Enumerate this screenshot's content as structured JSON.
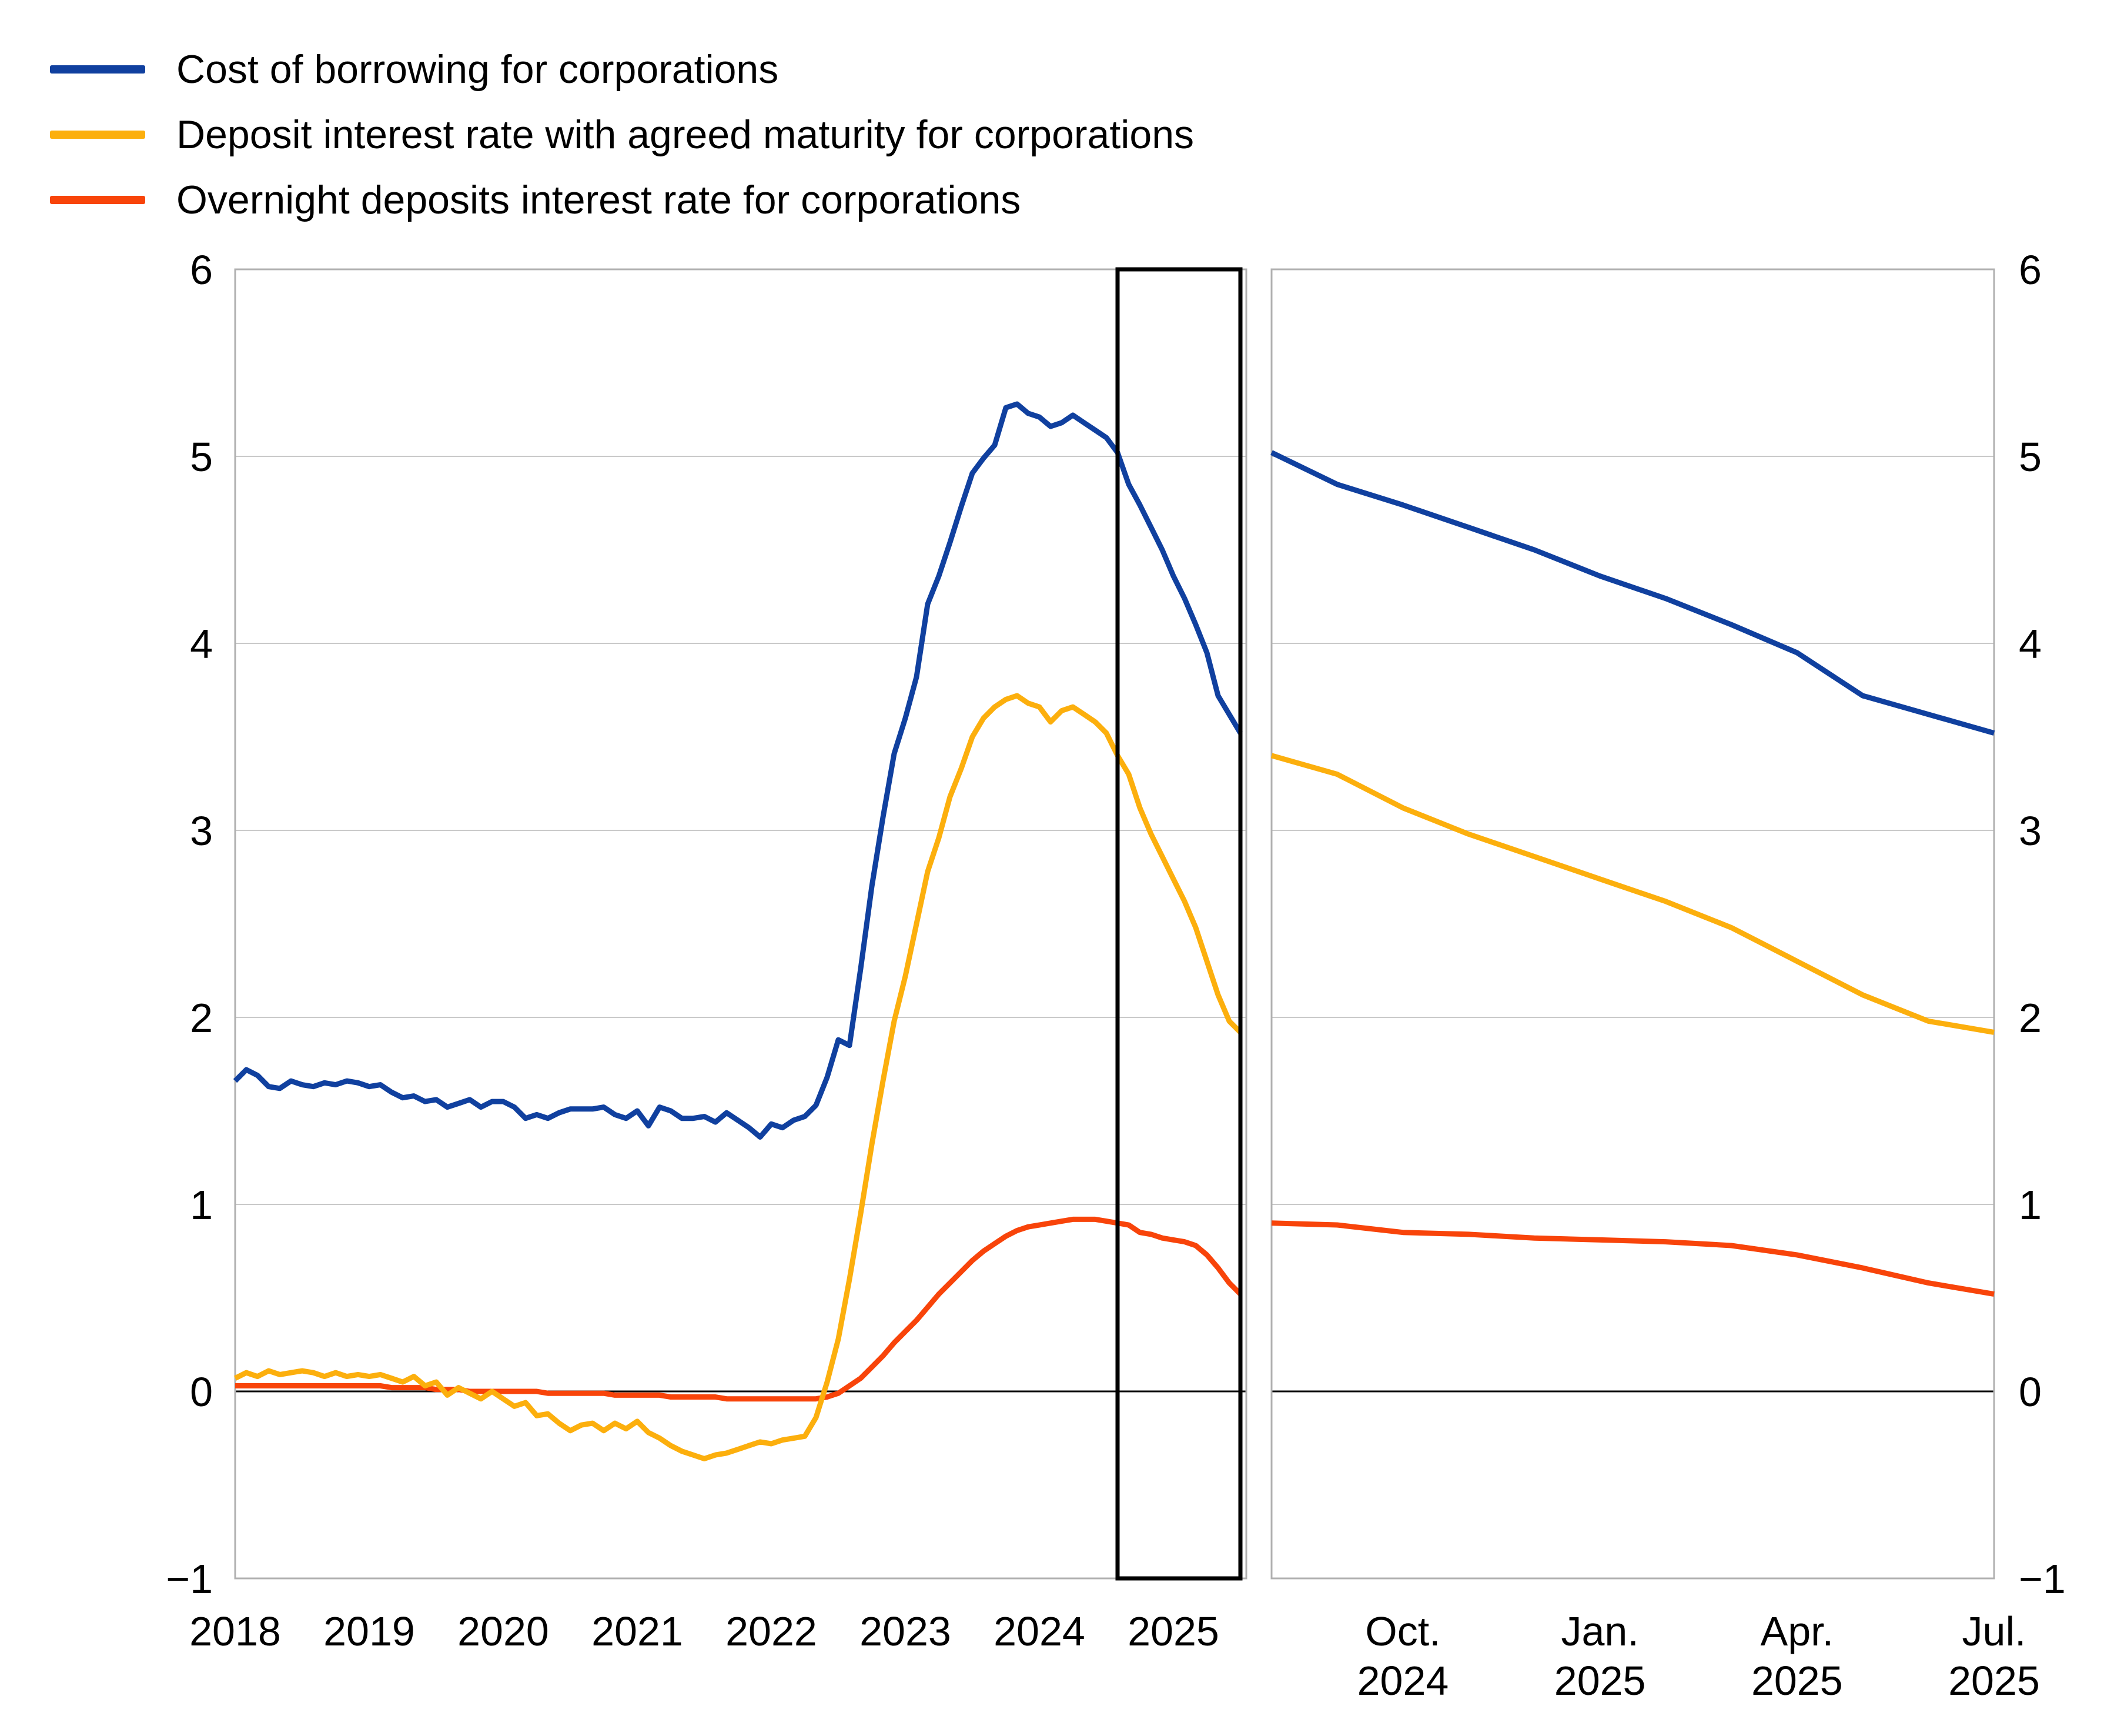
{
  "legend": {
    "items": [
      {
        "label": "Cost of borrowing for corporations",
        "color": "#10409f",
        "swatch_icon": "line-swatch-icon"
      },
      {
        "label": "Deposit interest rate with agreed maturity for corporations",
        "color": "#fcaf0d",
        "swatch_icon": "line-swatch-icon"
      },
      {
        "label": "Overnight deposits interest rate for corporations",
        "color": "#f8440a",
        "swatch_icon": "line-swatch-icon"
      }
    ]
  },
  "axis_colors": {
    "grid": "#c9c9c9",
    "border": "#b0b0b0",
    "zero_line": "#000000",
    "text": "#000000",
    "highlight_box": "#000000"
  },
  "chart_data": [
    {
      "type": "line",
      "panel": "left",
      "title": "",
      "xlabel": "",
      "ylabel": "",
      "frequency": "monthly",
      "x_start": "2018-01",
      "x_end": "2025-07",
      "ylim": [
        -1,
        6
      ],
      "y_ticks": [
        6,
        5,
        4,
        3,
        2,
        1,
        0,
        -1
      ],
      "y_tick_labels": [
        "6",
        "5",
        "4",
        "3",
        "2",
        "1",
        "0",
        "−1"
      ],
      "y_label_side": "left",
      "grid": "horizontal",
      "legend_position": "top-left",
      "x_ticks": [
        {
          "label": "2018",
          "index": 0
        },
        {
          "label": "2019",
          "index": 12
        },
        {
          "label": "2020",
          "index": 24
        },
        {
          "label": "2021",
          "index": 36
        },
        {
          "label": "2022",
          "index": 48
        },
        {
          "label": "2023",
          "index": 60
        },
        {
          "label": "2024",
          "index": 72
        },
        {
          "label": "2025",
          "index": 84
        }
      ],
      "highlight_box": {
        "from": "2024-08",
        "to": "2025-07",
        "from_index": 79,
        "to_index": 90
      },
      "series": [
        {
          "name": "Cost of borrowing for corporations",
          "color": "#10409f",
          "values": [
            1.66,
            1.72,
            1.69,
            1.63,
            1.62,
            1.66,
            1.64,
            1.63,
            1.65,
            1.64,
            1.66,
            1.65,
            1.63,
            1.64,
            1.6,
            1.57,
            1.58,
            1.55,
            1.56,
            1.52,
            1.54,
            1.56,
            1.52,
            1.55,
            1.55,
            1.52,
            1.46,
            1.48,
            1.46,
            1.49,
            1.51,
            1.51,
            1.51,
            1.52,
            1.48,
            1.46,
            1.5,
            1.42,
            1.52,
            1.5,
            1.46,
            1.46,
            1.47,
            1.44,
            1.49,
            1.45,
            1.41,
            1.36,
            1.43,
            1.41,
            1.45,
            1.47,
            1.53,
            1.68,
            1.88,
            1.85,
            2.26,
            2.7,
            3.07,
            3.41,
            3.6,
            3.82,
            4.21,
            4.36,
            4.54,
            4.73,
            4.91,
            4.99,
            5.06,
            5.26,
            5.28,
            5.23,
            5.21,
            5.16,
            5.18,
            5.22,
            5.18,
            5.14,
            5.1,
            5.02,
            4.85,
            4.74,
            4.62,
            4.5,
            4.36,
            4.24,
            4.1,
            3.95,
            3.72,
            3.62,
            3.52
          ]
        },
        {
          "name": "Deposit interest rate with agreed maturity for corporations",
          "color": "#fcaf0d",
          "values": [
            0.07,
            0.1,
            0.08,
            0.11,
            0.09,
            0.1,
            0.11,
            0.1,
            0.08,
            0.1,
            0.08,
            0.09,
            0.08,
            0.09,
            0.07,
            0.05,
            0.08,
            0.03,
            0.05,
            -0.02,
            0.02,
            -0.01,
            -0.04,
            0.0,
            -0.04,
            -0.08,
            -0.06,
            -0.13,
            -0.12,
            -0.17,
            -0.21,
            -0.18,
            -0.17,
            -0.21,
            -0.17,
            -0.2,
            -0.16,
            -0.22,
            -0.25,
            -0.29,
            -0.32,
            -0.34,
            -0.36,
            -0.34,
            -0.33,
            -0.31,
            -0.29,
            -0.27,
            -0.28,
            -0.26,
            -0.25,
            -0.24,
            -0.14,
            0.05,
            0.28,
            0.6,
            0.95,
            1.32,
            1.66,
            1.98,
            2.22,
            2.5,
            2.78,
            2.96,
            3.18,
            3.33,
            3.5,
            3.6,
            3.66,
            3.7,
            3.72,
            3.68,
            3.66,
            3.58,
            3.64,
            3.66,
            3.62,
            3.58,
            3.52,
            3.4,
            3.3,
            3.12,
            2.98,
            2.86,
            2.74,
            2.62,
            2.48,
            2.3,
            2.12,
            1.98,
            1.92
          ]
        },
        {
          "name": "Overnight deposits interest rate for corporations",
          "color": "#f8440a",
          "values": [
            0.03,
            0.03,
            0.03,
            0.03,
            0.03,
            0.03,
            0.03,
            0.03,
            0.03,
            0.03,
            0.03,
            0.03,
            0.03,
            0.03,
            0.02,
            0.02,
            0.02,
            0.02,
            0.01,
            0.01,
            0.01,
            0.0,
            0.0,
            0.0,
            0.0,
            0.0,
            0.0,
            0.0,
            -0.01,
            -0.01,
            -0.01,
            -0.01,
            -0.01,
            -0.01,
            -0.02,
            -0.02,
            -0.02,
            -0.02,
            -0.02,
            -0.03,
            -0.03,
            -0.03,
            -0.03,
            -0.03,
            -0.04,
            -0.04,
            -0.04,
            -0.04,
            -0.04,
            -0.04,
            -0.04,
            -0.04,
            -0.04,
            -0.03,
            -0.01,
            0.03,
            0.07,
            0.13,
            0.19,
            0.26,
            0.32,
            0.38,
            0.45,
            0.52,
            0.58,
            0.64,
            0.7,
            0.75,
            0.79,
            0.83,
            0.86,
            0.88,
            0.89,
            0.9,
            0.91,
            0.92,
            0.92,
            0.92,
            0.91,
            0.9,
            0.89,
            0.85,
            0.84,
            0.82,
            0.81,
            0.8,
            0.78,
            0.73,
            0.66,
            0.58,
            0.52
          ]
        }
      ]
    },
    {
      "type": "line",
      "panel": "right",
      "title": "",
      "xlabel": "",
      "ylabel": "",
      "frequency": "monthly",
      "x_start": "2024-08",
      "x_end": "2025-07",
      "ylim": [
        -1,
        6
      ],
      "y_ticks": [
        6,
        5,
        4,
        3,
        2,
        1,
        0,
        -1
      ],
      "y_tick_labels": [
        "6",
        "5",
        "4",
        "3",
        "2",
        "1",
        "0",
        "−1"
      ],
      "y_label_side": "right",
      "grid": "horizontal",
      "x_ticks": [
        {
          "label_line1": "Oct.",
          "label_line2": "2024",
          "index": 2
        },
        {
          "label_line1": "Jan.",
          "label_line2": "2025",
          "index": 5
        },
        {
          "label_line1": "Apr.",
          "label_line2": "2025",
          "index": 8
        },
        {
          "label_line1": "Jul.",
          "label_line2": "2025",
          "index": 11
        }
      ],
      "series": [
        {
          "name": "Cost of borrowing for corporations",
          "color": "#10409f",
          "values": [
            5.02,
            4.85,
            4.74,
            4.62,
            4.5,
            4.36,
            4.24,
            4.1,
            3.95,
            3.72,
            3.62,
            3.52
          ]
        },
        {
          "name": "Deposit interest rate with agreed maturity for corporations",
          "color": "#fcaf0d",
          "values": [
            3.4,
            3.3,
            3.12,
            2.98,
            2.86,
            2.74,
            2.62,
            2.48,
            2.3,
            2.12,
            1.98,
            1.92
          ]
        },
        {
          "name": "Overnight deposits interest rate for corporations",
          "color": "#f8440a",
          "values": [
            0.9,
            0.89,
            0.85,
            0.84,
            0.82,
            0.81,
            0.8,
            0.78,
            0.73,
            0.66,
            0.58,
            0.52
          ]
        }
      ]
    }
  ]
}
